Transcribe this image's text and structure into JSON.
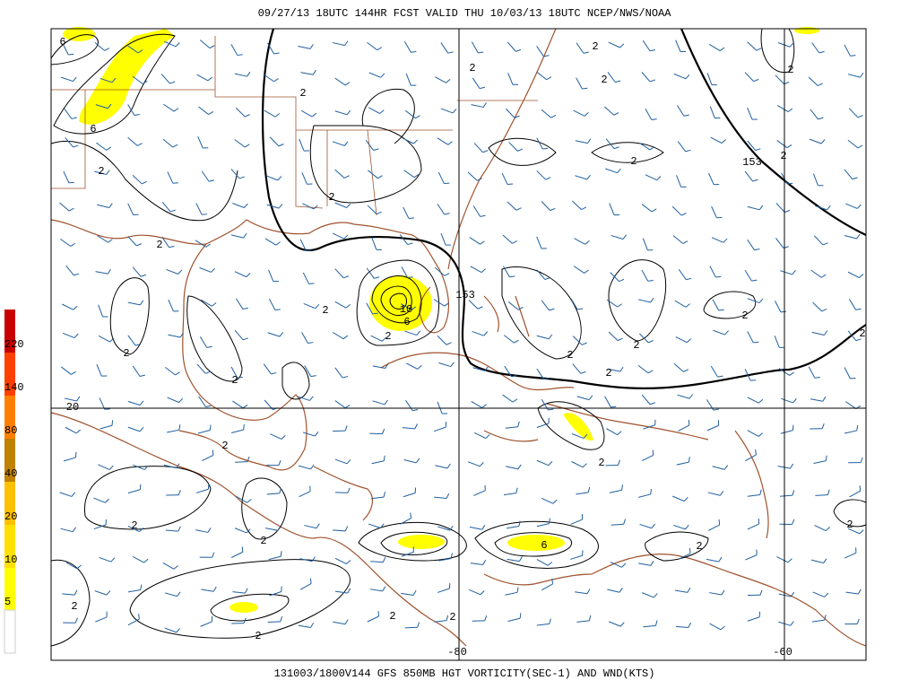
{
  "header": {
    "title": "09/27/13 18UTC   144HR  FCST VALID THU 10/03/13 18UTC  NCEP/NWS/NOAA"
  },
  "footer": {
    "title": "131003/1800V144 GFS 850MB HGT VORTICITY(SEC-1) AND WND(KTS)"
  },
  "colorbar": {
    "labels": [
      5,
      10,
      20,
      40,
      80,
      140,
      220
    ]
  },
  "grid_labels": [
    "20",
    "-80",
    "-60"
  ],
  "contour_labels": [
    "6",
    "6",
    "2",
    "2",
    "2",
    "2",
    "2",
    "2",
    "2",
    "2",
    "2",
    "153",
    "2",
    "153",
    "10",
    "6",
    "2",
    "2",
    "2",
    "2",
    "2",
    "2",
    "2",
    "2",
    "2",
    "2",
    "2",
    "2",
    "2",
    "2",
    "2",
    "6",
    "2",
    "2",
    "2",
    "2"
  ]
}
